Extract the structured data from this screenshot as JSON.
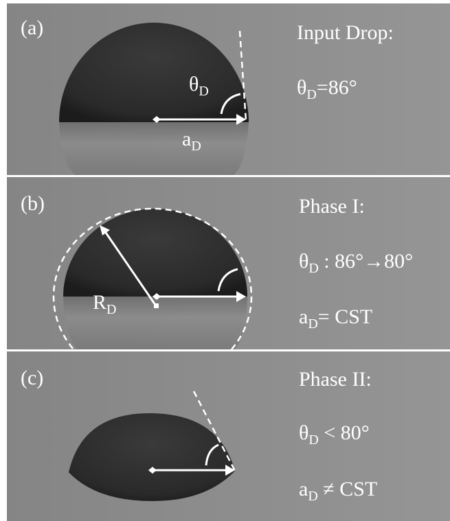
{
  "panels": [
    {
      "label": "(a)",
      "title": "Input Drop:",
      "lines": [
        {
          "sym": "θ",
          "sub": "D",
          "text": "=86°"
        }
      ],
      "annotations": [
        {
          "sym": "θ",
          "sub": "D"
        },
        {
          "sym": "a",
          "sub": "D"
        }
      ]
    },
    {
      "label": "(b)",
      "title": "Phase I:",
      "lines": [
        {
          "sym": "θ",
          "sub": "D",
          "text": " : 86°→80°"
        },
        {
          "sym": "a",
          "sub": "D",
          "text": "= CST"
        }
      ],
      "annotations": [
        {
          "sym": "R",
          "sub": "D"
        }
      ]
    },
    {
      "label": "(c)",
      "title": "Phase II:",
      "lines": [
        {
          "sym": "θ",
          "sub": "D",
          "text": " < 80°"
        },
        {
          "sym": "a",
          "sub": "D",
          "text": " ≠ CST"
        }
      ],
      "annotations": []
    }
  ]
}
